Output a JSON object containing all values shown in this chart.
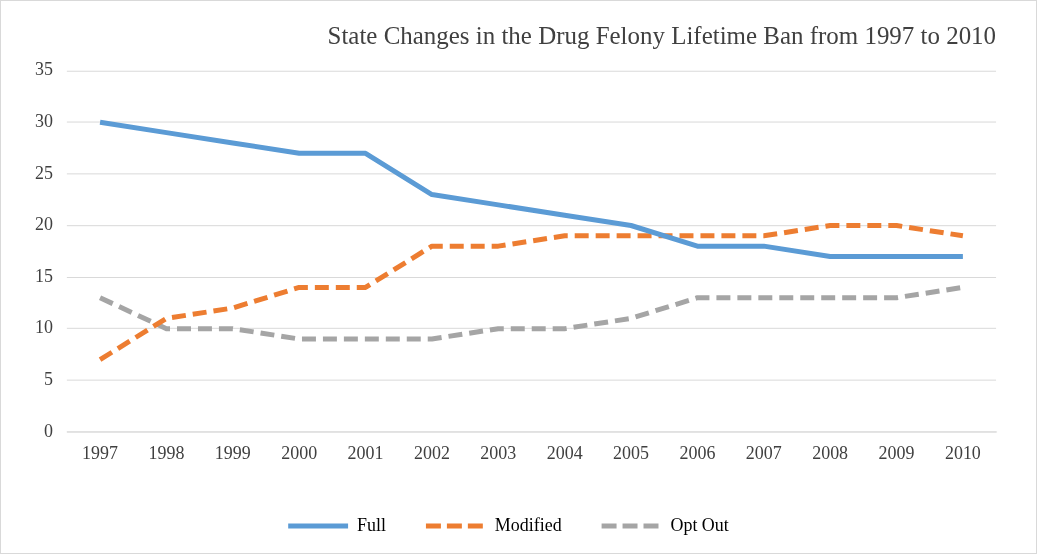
{
  "chart_data": {
    "type": "line",
    "title": "State Changes in the Drug Felony Lifetime Ban from 1997 to 2010",
    "categories": [
      "1997",
      "1998",
      "1999",
      "2000",
      "2001",
      "2002",
      "2003",
      "2004",
      "2005",
      "2006",
      "2007",
      "2008",
      "2009",
      "2010"
    ],
    "series": [
      {
        "name": "Full",
        "color": "#5b9bd5",
        "line_style": "solid",
        "values": [
          30,
          29,
          28,
          27,
          27,
          23,
          22,
          21,
          20,
          18,
          18,
          17,
          17,
          17
        ]
      },
      {
        "name": "Modified",
        "color": "#ed7d31",
        "line_style": "dashed",
        "values": [
          7,
          11,
          12,
          14,
          14,
          18,
          18,
          19,
          19,
          19,
          19,
          20,
          20,
          19
        ]
      },
      {
        "name": "Opt Out",
        "color": "#a5a5a5",
        "line_style": "dashed",
        "values": [
          13,
          10,
          10,
          9,
          9,
          9,
          10,
          10,
          11,
          13,
          13,
          13,
          13,
          14
        ]
      }
    ],
    "ylim": [
      0,
      35
    ],
    "yticks": [
      0,
      5,
      10,
      15,
      20,
      25,
      30,
      35
    ],
    "grid": "y",
    "legend": "bottom",
    "marker": "none"
  }
}
